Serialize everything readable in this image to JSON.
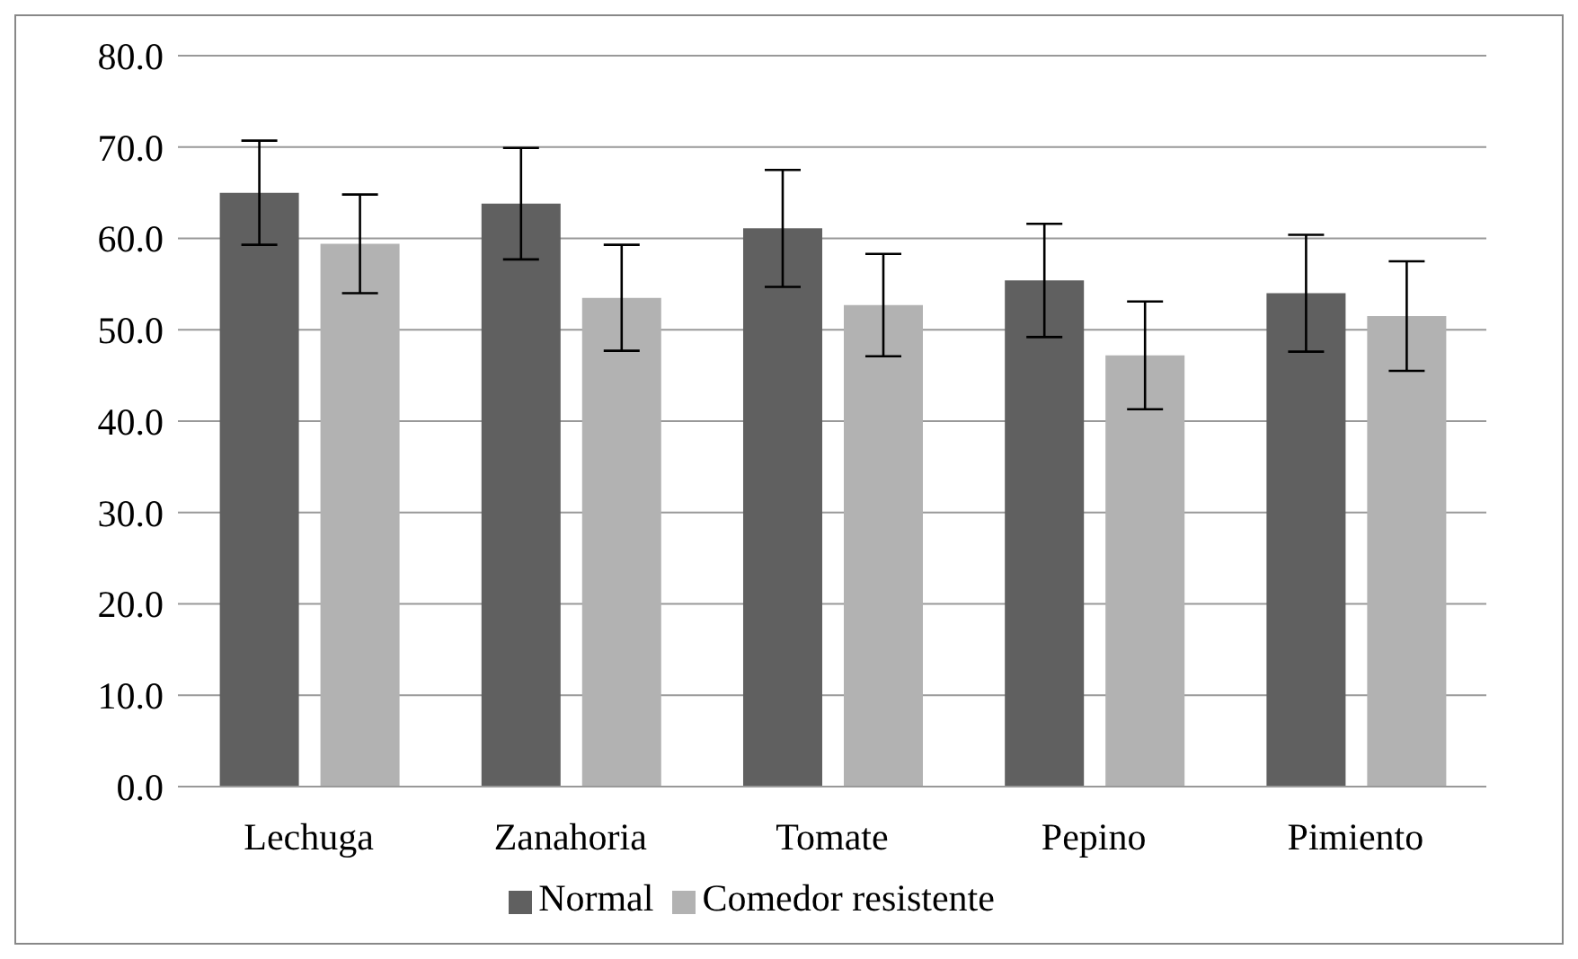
{
  "chart_data": {
    "type": "bar",
    "categories": [
      "Lechuga",
      "Zanahoria",
      "Tomate",
      "Pepino",
      "Pimiento"
    ],
    "series": [
      {
        "name": "Normal",
        "color": "#606060",
        "values": [
          65.0,
          63.8,
          61.1,
          55.4,
          54.0
        ],
        "errors": [
          5.7,
          6.1,
          6.4,
          6.2,
          6.4
        ]
      },
      {
        "name": "Comedor resistente",
        "color": "#b2b2b2",
        "values": [
          59.4,
          53.5,
          52.7,
          47.2,
          51.5
        ],
        "errors": [
          5.4,
          5.8,
          5.6,
          5.9,
          6.0
        ]
      }
    ],
    "ylim": [
      0,
      80
    ],
    "yticks": [
      {
        "value": 0,
        "label": "0.0"
      },
      {
        "value": 10,
        "label": "10.0"
      },
      {
        "value": 20,
        "label": "20.0"
      },
      {
        "value": 30,
        "label": "30.0"
      },
      {
        "value": 40,
        "label": "40.0"
      },
      {
        "value": 50,
        "label": "50.0"
      },
      {
        "value": 60,
        "label": "60.0"
      },
      {
        "value": 70,
        "label": "70.0"
      },
      {
        "value": 80,
        "label": "80.0"
      }
    ],
    "grid": "y",
    "legend": "bottom"
  }
}
